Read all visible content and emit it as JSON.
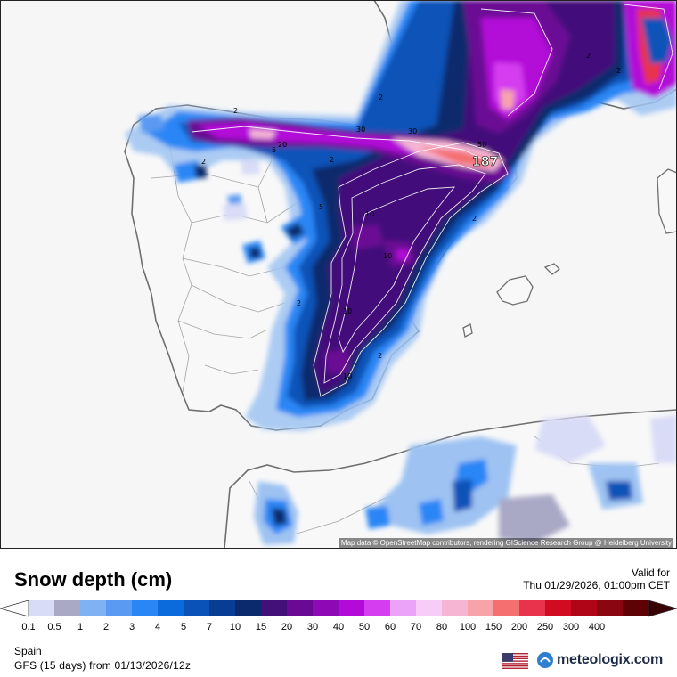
{
  "map": {
    "attribution": "Map data © OpenStreetMap contributors, rendering GIScience Research Group @ Heidelberg University",
    "contour_labels": [
      "2",
      "5",
      "10",
      "20",
      "30",
      "50",
      "187"
    ]
  },
  "footer": {
    "title": "Snow depth (cm)",
    "valid_label": "Valid for",
    "valid_time": "Thu 01/29/2026, 01:00pm CET",
    "region": "Spain",
    "model_run": "GFS (15 days) from  01/13/2026/12z",
    "brand": "meteologix.com",
    "flag_icon": "us-flag-icon"
  },
  "legend": {
    "levels": [
      "0.1",
      "0.5",
      "1",
      "2",
      "3",
      "4",
      "5",
      "7",
      "10",
      "15",
      "20",
      "30",
      "40",
      "50",
      "60",
      "70",
      "80",
      "100",
      "150",
      "200",
      "250",
      "300",
      "400"
    ],
    "colors": [
      "#d8dcf6",
      "#a9a9c6",
      "#7fb2f2",
      "#5a9af2",
      "#2b86f5",
      "#0c6bdc",
      "#0a52b8",
      "#083d94",
      "#0b2a6d",
      "#43107a",
      "#6a0a94",
      "#8d09b6",
      "#b30ad8",
      "#d53ef0",
      "#eaa3f8",
      "#f7cdf7",
      "#f5b5d3",
      "#f7a3aa",
      "#f47070",
      "#e9334c",
      "#d10b22",
      "#b00516",
      "#8a0611",
      "#5e0206"
    ]
  }
}
